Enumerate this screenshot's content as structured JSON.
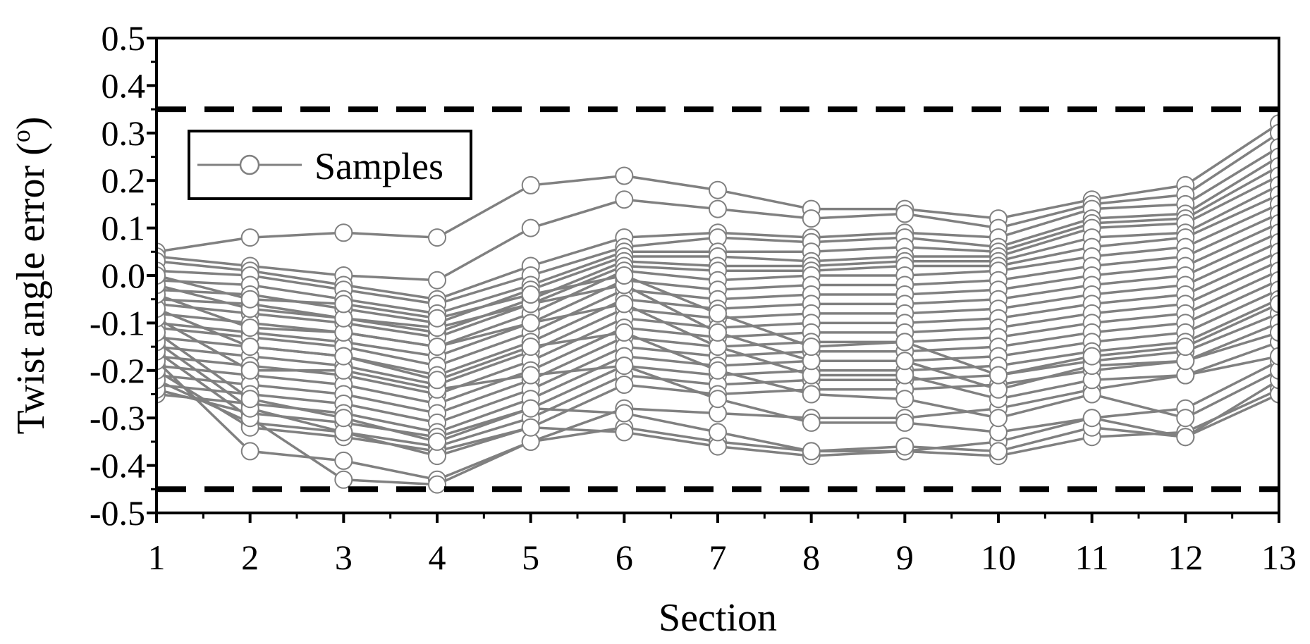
{
  "chart_data": {
    "type": "line",
    "title": "",
    "xlabel": "Section",
    "ylabel": "Twist angle error (",
    "ylabel_sup": "o",
    "ylabel_close": ")",
    "xlim": [
      1,
      13
    ],
    "ylim": [
      -0.5,
      0.5
    ],
    "x_ticks": [
      "1",
      "2",
      "3",
      "4",
      "5",
      "6",
      "7",
      "8",
      "9",
      "10",
      "11",
      "12",
      "13"
    ],
    "y_ticks": [
      "-0.5",
      "-0.4",
      "-0.3",
      "-0.2",
      "-0.1",
      "0.0",
      "0.1",
      "0.2",
      "0.3",
      "0.4",
      "0.5"
    ],
    "legend": {
      "label": "Samples",
      "position": "top-left"
    },
    "grid": false,
    "series_color": "#808080",
    "limit_lines": [
      0.35,
      -0.45
    ],
    "x": [
      1,
      2,
      3,
      4,
      5,
      6,
      7,
      8,
      9,
      10,
      11,
      12,
      13
    ],
    "series": [
      {
        "values": [
          0.05,
          0.08,
          0.09,
          0.08,
          0.19,
          0.21,
          0.18,
          0.14,
          0.14,
          0.12,
          0.16,
          0.19,
          0.32
        ]
      },
      {
        "values": [
          0.04,
          0.02,
          0.0,
          -0.01,
          0.1,
          0.16,
          0.14,
          0.12,
          0.13,
          0.1,
          0.15,
          0.17,
          0.3
        ]
      },
      {
        "values": [
          0.03,
          0.01,
          -0.02,
          -0.05,
          0.02,
          0.08,
          0.09,
          0.08,
          0.09,
          0.08,
          0.14,
          0.15,
          0.27
        ]
      },
      {
        "values": [
          0.01,
          0.0,
          -0.03,
          -0.06,
          0.0,
          0.06,
          0.08,
          0.07,
          0.08,
          0.06,
          0.12,
          0.13,
          0.25
        ]
      },
      {
        "values": [
          -0.01,
          -0.02,
          -0.05,
          -0.08,
          -0.02,
          0.05,
          0.05,
          0.05,
          0.06,
          0.05,
          0.11,
          0.12,
          0.23
        ]
      },
      {
        "values": [
          -0.03,
          -0.04,
          -0.07,
          -0.1,
          -0.03,
          0.04,
          0.04,
          0.03,
          0.04,
          0.04,
          0.1,
          0.11,
          0.21
        ]
      },
      {
        "values": [
          -0.05,
          -0.06,
          -0.09,
          -0.12,
          -0.05,
          0.03,
          0.02,
          0.02,
          0.03,
          0.03,
          0.08,
          0.09,
          0.19
        ]
      },
      {
        "values": [
          -0.06,
          -0.08,
          -0.1,
          -0.13,
          -0.06,
          0.02,
          0.01,
          0.01,
          0.02,
          0.02,
          0.06,
          0.08,
          0.17
        ]
      },
      {
        "values": [
          -0.08,
          -0.1,
          -0.12,
          -0.15,
          -0.08,
          0.01,
          -0.01,
          0.0,
          0.0,
          0.01,
          0.04,
          0.06,
          0.15
        ]
      },
      {
        "values": [
          -0.1,
          -0.12,
          -0.14,
          -0.17,
          -0.1,
          -0.01,
          -0.03,
          -0.02,
          -0.02,
          -0.01,
          0.02,
          0.04,
          0.13
        ]
      },
      {
        "values": [
          -0.11,
          -0.13,
          -0.15,
          -0.19,
          -0.12,
          -0.03,
          -0.05,
          -0.04,
          -0.04,
          -0.03,
          0.0,
          0.02,
          0.11
        ]
      },
      {
        "values": [
          -0.13,
          -0.15,
          -0.17,
          -0.21,
          -0.14,
          -0.05,
          -0.07,
          -0.06,
          -0.06,
          -0.05,
          -0.02,
          0.0,
          0.09
        ]
      },
      {
        "values": [
          -0.15,
          -0.17,
          -0.19,
          -0.23,
          -0.16,
          -0.07,
          -0.09,
          -0.08,
          -0.08,
          -0.07,
          -0.04,
          -0.02,
          0.07
        ]
      },
      {
        "values": [
          -0.17,
          -0.19,
          -0.21,
          -0.25,
          -0.18,
          -0.09,
          -0.11,
          -0.1,
          -0.1,
          -0.09,
          -0.06,
          -0.04,
          0.05
        ]
      },
      {
        "values": [
          -0.19,
          -0.21,
          -0.23,
          -0.27,
          -0.2,
          -0.11,
          -0.13,
          -0.12,
          -0.12,
          -0.11,
          -0.08,
          -0.06,
          0.03
        ]
      },
      {
        "values": [
          -0.21,
          -0.23,
          -0.25,
          -0.29,
          -0.22,
          -0.13,
          -0.15,
          -0.14,
          -0.14,
          -0.13,
          -0.1,
          -0.08,
          0.01
        ]
      },
      {
        "values": [
          -0.23,
          -0.25,
          -0.27,
          -0.31,
          -0.24,
          -0.15,
          -0.17,
          -0.16,
          -0.16,
          -0.15,
          -0.12,
          -0.1,
          -0.01
        ]
      },
      {
        "values": [
          -0.25,
          -0.27,
          -0.29,
          -0.33,
          -0.26,
          -0.17,
          -0.19,
          -0.18,
          -0.18,
          -0.17,
          -0.14,
          -0.12,
          -0.03
        ]
      },
      {
        "values": [
          -0.24,
          -0.29,
          -0.31,
          -0.34,
          -0.28,
          -0.19,
          -0.21,
          -0.2,
          -0.2,
          -0.19,
          -0.16,
          -0.14,
          -0.05
        ]
      },
      {
        "values": [
          -0.22,
          -0.31,
          -0.33,
          -0.36,
          -0.3,
          -0.21,
          -0.23,
          -0.22,
          -0.22,
          -0.21,
          -0.18,
          -0.16,
          -0.08
        ]
      },
      {
        "values": [
          -0.2,
          -0.32,
          -0.34,
          -0.37,
          -0.32,
          -0.23,
          -0.25,
          -0.24,
          -0.24,
          -0.23,
          -0.2,
          -0.18,
          -0.1
        ]
      },
      {
        "values": [
          -0.18,
          -0.37,
          -0.39,
          -0.43,
          -0.35,
          -0.28,
          -0.29,
          -0.3,
          -0.3,
          -0.28,
          -0.24,
          -0.21,
          -0.14
        ]
      },
      {
        "values": [
          -0.16,
          -0.3,
          -0.43,
          -0.44,
          -0.35,
          -0.32,
          -0.35,
          -0.37,
          -0.37,
          -0.35,
          -0.3,
          -0.28,
          -0.18
        ]
      },
      {
        "values": [
          -0.14,
          -0.28,
          -0.33,
          -0.38,
          -0.32,
          -0.33,
          -0.36,
          -0.38,
          -0.37,
          -0.38,
          -0.34,
          -0.33,
          -0.24
        ]
      },
      {
        "values": [
          -0.12,
          -0.26,
          -0.3,
          -0.35,
          -0.28,
          -0.29,
          -0.33,
          -0.37,
          -0.36,
          -0.37,
          -0.32,
          -0.34,
          -0.25
        ]
      },
      {
        "values": [
          -0.09,
          -0.2,
          -0.2,
          -0.24,
          -0.21,
          -0.19,
          -0.26,
          -0.31,
          -0.31,
          -0.33,
          -0.3,
          -0.34,
          -0.22
        ]
      },
      {
        "values": [
          -0.07,
          -0.15,
          -0.17,
          -0.22,
          -0.15,
          -0.12,
          -0.2,
          -0.25,
          -0.26,
          -0.3,
          -0.25,
          -0.3,
          -0.2
        ]
      },
      {
        "values": [
          -0.04,
          -0.11,
          -0.12,
          -0.15,
          -0.1,
          -0.06,
          -0.15,
          -0.21,
          -0.21,
          -0.26,
          -0.22,
          -0.21,
          -0.17
        ]
      },
      {
        "values": [
          -0.02,
          -0.07,
          -0.09,
          -0.11,
          -0.06,
          -0.02,
          -0.12,
          -0.18,
          -0.18,
          -0.24,
          -0.19,
          -0.18,
          -0.12
        ]
      },
      {
        "values": [
          0.0,
          -0.05,
          -0.06,
          -0.09,
          -0.04,
          0.0,
          -0.08,
          -0.15,
          -0.14,
          -0.21,
          -0.17,
          -0.15,
          -0.06
        ]
      }
    ]
  }
}
